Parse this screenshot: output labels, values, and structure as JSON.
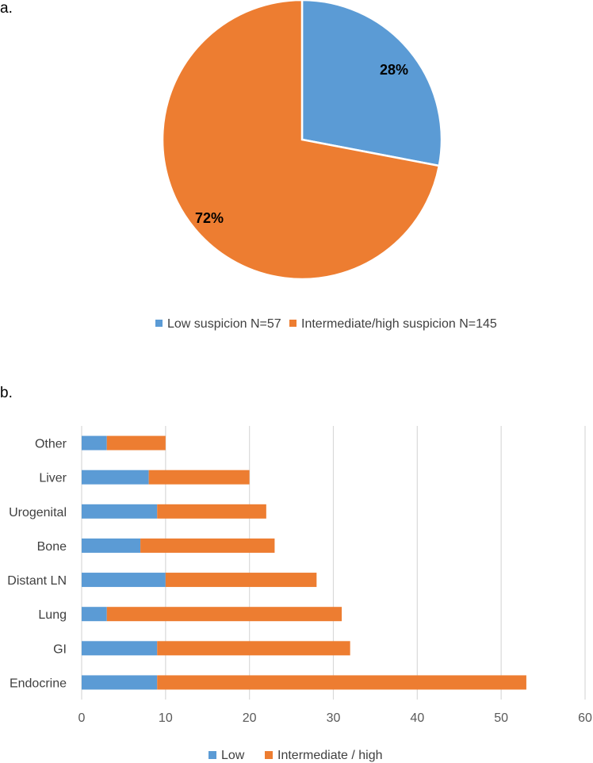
{
  "panels": {
    "a_label": "a.",
    "b_label": "b."
  },
  "chart_data": [
    {
      "type": "pie",
      "title": "",
      "slices": [
        {
          "name": "Low suspicion N=57",
          "value": 28,
          "label": "28%",
          "color": "#5B9BD5"
        },
        {
          "name": "Intermediate/high suspicion N=145",
          "value": 72,
          "label": "72%",
          "color": "#ED7D31"
        }
      ],
      "legend_position": "bottom"
    },
    {
      "type": "bar",
      "orientation": "horizontal",
      "stacked": true,
      "title": "",
      "categories": [
        "Endocrine",
        "GI",
        "Lung",
        "Distant LN",
        "Bone",
        "Urogenital",
        "Liver",
        "Other"
      ],
      "series": [
        {
          "name": "Low",
          "color": "#5B9BD5",
          "values": [
            9,
            9,
            3,
            10,
            7,
            9,
            8,
            3
          ]
        },
        {
          "name": "Intermediate / high",
          "color": "#ED7D31",
          "values": [
            44,
            23,
            28,
            18,
            16,
            13,
            12,
            7
          ]
        }
      ],
      "xlim": [
        0,
        60
      ],
      "xticks": [
        "0",
        "10",
        "20",
        "30",
        "40",
        "50",
        "60"
      ],
      "grid": "vertical",
      "legend_position": "bottom"
    }
  ]
}
